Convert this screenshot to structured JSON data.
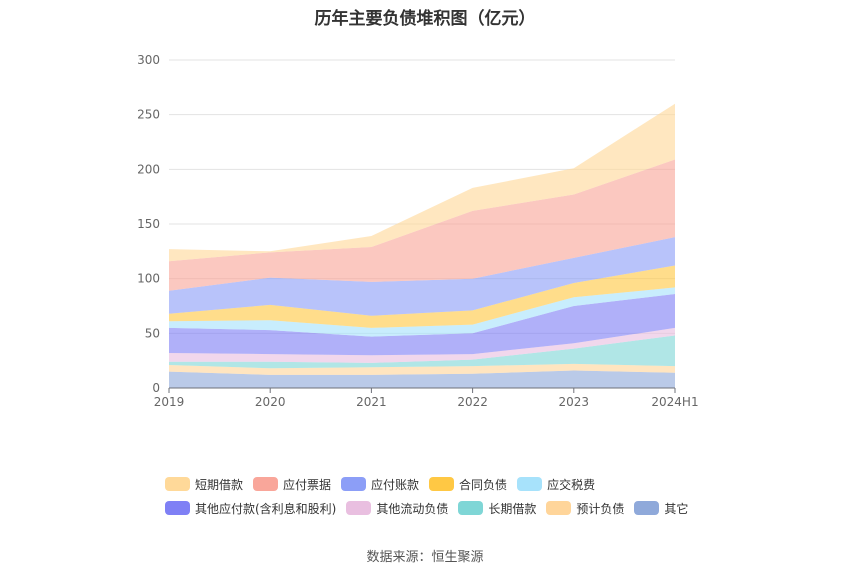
{
  "chart_data": {
    "type": "area",
    "stacked": true,
    "title": "历年主要负债堆积图（亿元）",
    "categories": [
      "2019",
      "2020",
      "2021",
      "2022",
      "2023",
      "2024H1"
    ],
    "ylim": [
      0,
      300
    ],
    "yticks": [
      0,
      50,
      100,
      150,
      200,
      250,
      300
    ],
    "grid": true,
    "legend_position": "bottom",
    "series": [
      {
        "name": "其它",
        "color": "#8fa9da",
        "values": [
          15,
          12,
          12,
          13,
          16,
          14
        ]
      },
      {
        "name": "预计负债",
        "color": "#ffd59a",
        "values": [
          6,
          6,
          7,
          7,
          6,
          6
        ]
      },
      {
        "name": "长期借款",
        "color": "#7fd6d6",
        "values": [
          3,
          6,
          4,
          6,
          14,
          28
        ]
      },
      {
        "name": "其他流动负债",
        "color": "#e9bfe0",
        "values": [
          8,
          7,
          7,
          5,
          5,
          7
        ]
      },
      {
        "name": "其他应付款(含利息和股利)",
        "color": "#7f80f5",
        "values": [
          23,
          22,
          17,
          19,
          34,
          31
        ]
      },
      {
        "name": "应交税费",
        "color": "#a7e2fb",
        "values": [
          6,
          9,
          8,
          8,
          8,
          6
        ]
      },
      {
        "name": "合同负债",
        "color": "#ffc844",
        "values": [
          7,
          14,
          11,
          13,
          13,
          20
        ]
      },
      {
        "name": "应付账款",
        "color": "#8c9ef7",
        "values": [
          21,
          25,
          31,
          29,
          23,
          26
        ]
      },
      {
        "name": "应付票据",
        "color": "#f9a69a",
        "values": [
          27,
          23,
          32,
          62,
          58,
          71
        ]
      },
      {
        "name": "短期借款",
        "color": "#ffd999",
        "values": [
          11,
          1,
          10,
          21,
          24,
          51
        ]
      }
    ]
  },
  "legend_rows": [
    [
      {
        "name": "短期借款",
        "color": "#ffd999"
      },
      {
        "name": "应付票据",
        "color": "#f9a69a"
      },
      {
        "name": "应付账款",
        "color": "#8c9ef7"
      },
      {
        "name": "合同负债",
        "color": "#ffc844"
      },
      {
        "name": "应交税费",
        "color": "#a7e2fb"
      }
    ],
    [
      {
        "name": "其他应付款(含利息和股利)",
        "color": "#7f80f5"
      },
      {
        "name": "其他流动负债",
        "color": "#e9bfe0"
      },
      {
        "name": "长期借款",
        "color": "#7fd6d6"
      },
      {
        "name": "预计负债",
        "color": "#ffd59a"
      },
      {
        "name": "其它",
        "color": "#8fa9da"
      }
    ]
  ],
  "source": "数据来源：恒生聚源"
}
